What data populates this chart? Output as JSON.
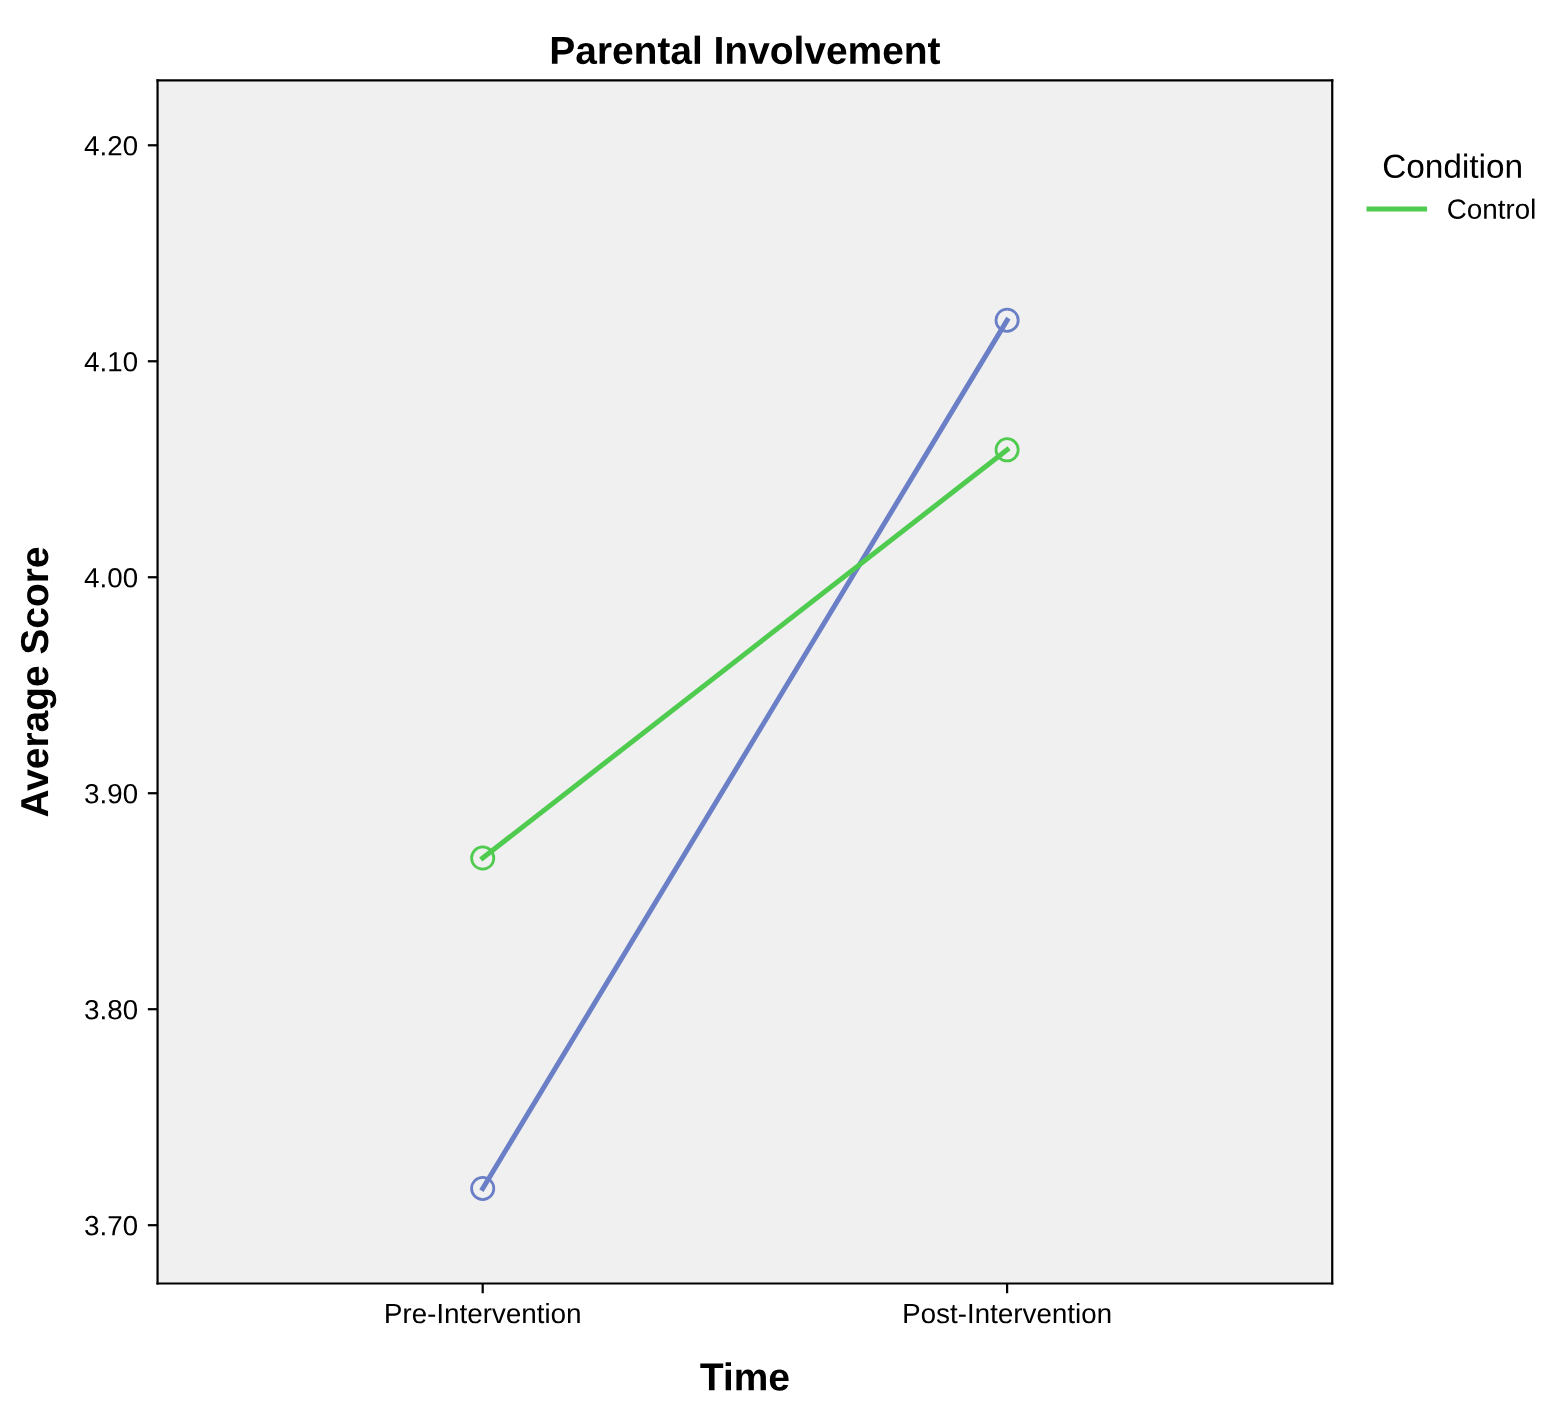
{
  "chart_data": {
    "type": "line",
    "title": "Parental Involvement",
    "xlabel": "Time",
    "ylabel": "Average Score",
    "legend_title": "Condition",
    "categories": [
      "Pre-Intervention",
      "Post-Intervention"
    ],
    "series": [
      {
        "color": "#6a7fc6",
        "values": [
          3.717,
          4.119
        ]
      },
      {
        "name": "Control",
        "color": "#4fcb4f",
        "values": [
          3.87,
          4.059
        ]
      }
    ],
    "ylim": [
      3.673,
      4.23
    ],
    "yticks": [
      {
        "value": 3.7,
        "label": "3.70"
      },
      {
        "value": 3.8,
        "label": "3.80"
      },
      {
        "value": 3.9,
        "label": "3.90"
      },
      {
        "value": 4.0,
        "label": "4.00"
      },
      {
        "value": 4.1,
        "label": "4.10"
      },
      {
        "value": 4.2,
        "label": "4.20"
      }
    ],
    "grid": false,
    "legend": "right",
    "marker": "circle",
    "line_style": "solid"
  }
}
